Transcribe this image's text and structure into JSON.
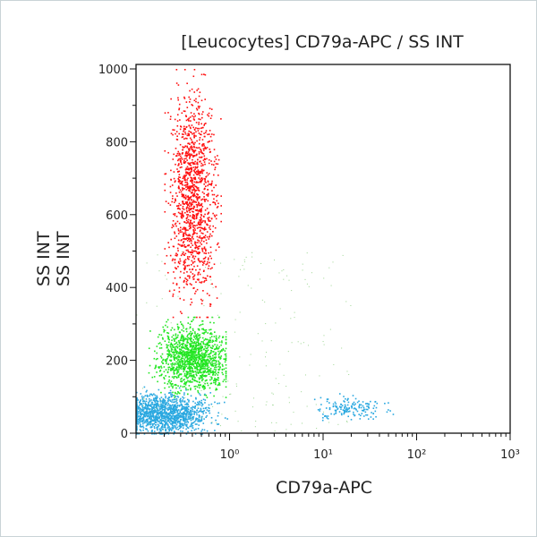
{
  "chart_data": {
    "type": "scatter",
    "title": "[Leucocytes] CD79a-APC / SS INT",
    "xlabel": "CD79a-APC",
    "ylabel": [
      "SS INT",
      "SS INT"
    ],
    "xscale": "log",
    "xlim": [
      0.1,
      1000
    ],
    "ylim": [
      0,
      1000
    ],
    "xticks": [
      {
        "value": 1,
        "label": "10⁰"
      },
      {
        "value": 10,
        "label": "10¹"
      },
      {
        "value": 100,
        "label": "10²"
      },
      {
        "value": 1000,
        "label": "10³"
      }
    ],
    "yticks": [
      0,
      200,
      400,
      600,
      800,
      1000
    ],
    "grid": false,
    "legend": "none",
    "populations": [
      {
        "color": "#ff1010",
        "x_center": 0.4,
        "x_range": [
          0.2,
          0.8
        ],
        "y_center": 650,
        "y_range": [
          320,
          1000
        ],
        "density": "high"
      },
      {
        "color": "#22e622",
        "x_center": 0.4,
        "x_range": [
          0.12,
          0.9
        ],
        "y_center": 210,
        "y_range": [
          100,
          320
        ],
        "density": "high"
      },
      {
        "color": "#2aa8e0",
        "x_center": 0.2,
        "x_range": [
          0.1,
          1.5
        ],
        "y_center": 55,
        "y_range": [
          0,
          130
        ],
        "density": "high"
      },
      {
        "color": "#2aa8e0",
        "x_center": 20,
        "x_range": [
          8,
          70
        ],
        "y_center": 70,
        "y_range": [
          30,
          110
        ],
        "density": "low"
      }
    ]
  }
}
